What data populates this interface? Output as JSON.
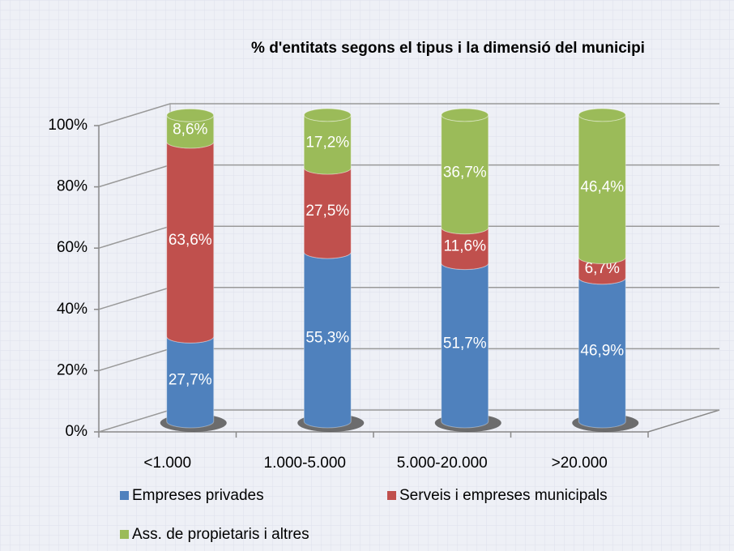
{
  "chart_data": {
    "type": "bar3d-stacked",
    "title": "% d'entitats segons el tipus i la dimensió del municipi",
    "categories": [
      "<1.000",
      "1.000-5.000",
      "5.000-20.000",
      ">20.000"
    ],
    "series": [
      {
        "name": "Empreses privades",
        "color": "#4f81bd",
        "values": [
          27.7,
          55.3,
          51.7,
          46.9
        ],
        "value_labels": [
          "27,7%",
          "55,3%",
          "51,7%",
          "46,9%"
        ]
      },
      {
        "name": "Serveis i empreses municipals",
        "color": "#c0504d",
        "values": [
          63.6,
          27.5,
          11.6,
          6.7
        ],
        "value_labels": [
          "63,6%",
          "27,5%",
          "11,6%",
          "6,7%"
        ]
      },
      {
        "name": "Ass. de propietaris i altres",
        "color": "#9bbb59",
        "values": [
          8.6,
          17.2,
          36.7,
          46.4
        ],
        "value_labels": [
          "8,6%",
          "17,2%",
          "36,7%",
          "46,4%"
        ]
      }
    ],
    "ylim": [
      0,
      100
    ],
    "yticks": [
      {
        "value": 0,
        "label": "0%"
      },
      {
        "value": 20,
        "label": "20%"
      },
      {
        "value": 40,
        "label": "40%"
      },
      {
        "value": 60,
        "label": "60%"
      },
      {
        "value": 80,
        "label": "80%"
      },
      {
        "value": 100,
        "label": "100%"
      }
    ],
    "grid": true
  }
}
